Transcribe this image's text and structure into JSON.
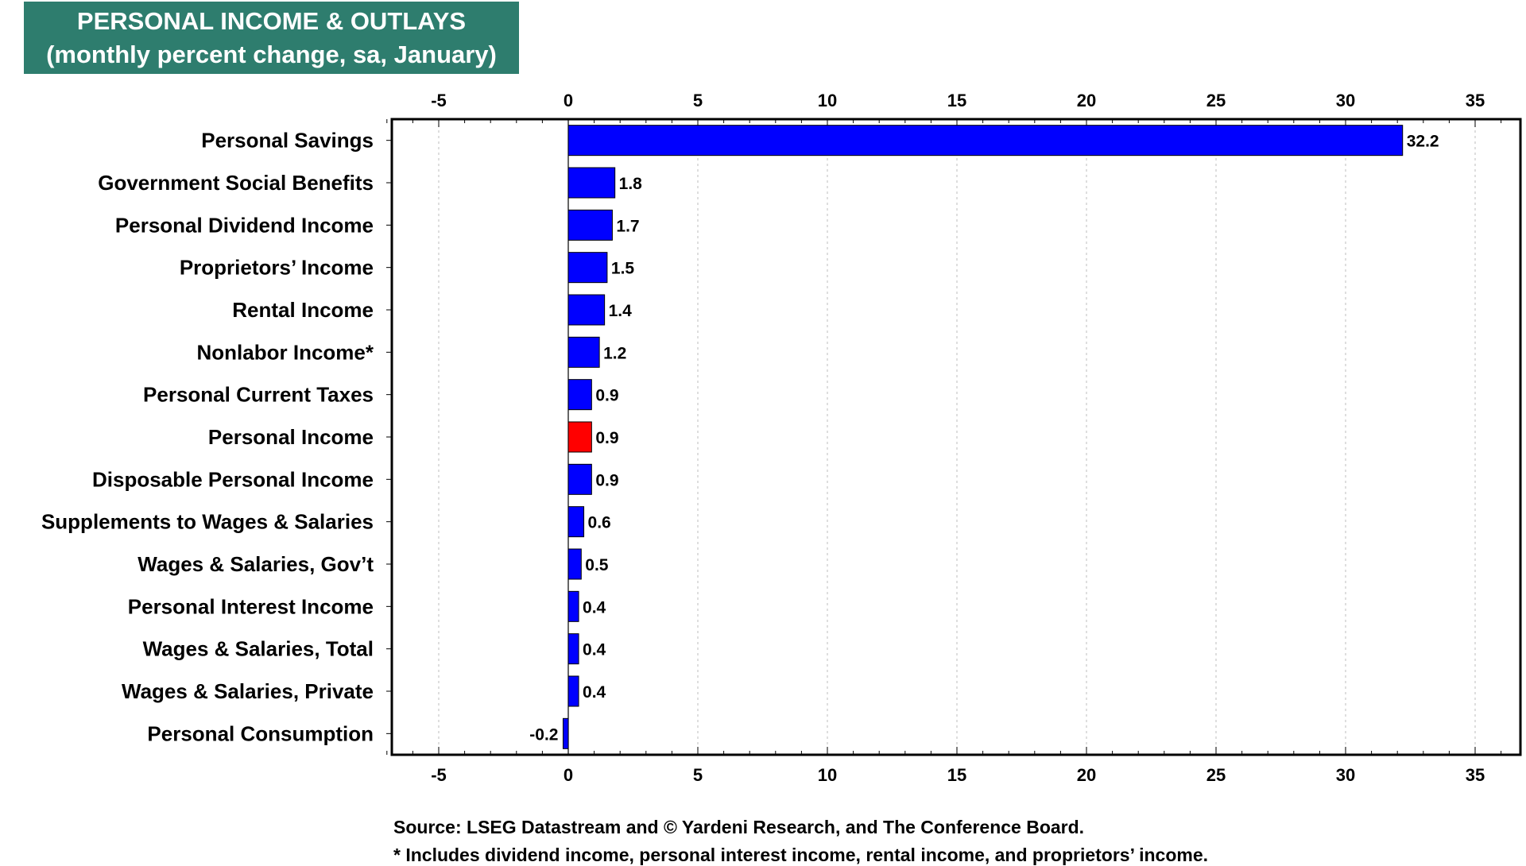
{
  "title": {
    "line1": "PERSONAL INCOME & OUTLAYS",
    "line2": "(monthly percent change, sa, January)",
    "background": "#2E7D6E"
  },
  "chart_data": {
    "type": "bar",
    "orientation": "horizontal",
    "categories": [
      "Personal Savings",
      "Government Social Benefits",
      "Personal Dividend Income",
      "Proprietors’ Income",
      "Rental Income",
      "Nonlabor Income*",
      "Personal Current Taxes",
      "Personal Income",
      "Disposable Personal Income",
      "Supplements to Wages & Salaries",
      "Wages & Salaries, Gov’t",
      "Personal Interest Income",
      "Wages & Salaries, Total",
      "Wages & Salaries, Private",
      "Personal Consumption"
    ],
    "values": [
      32.2,
      1.8,
      1.7,
      1.5,
      1.4,
      1.2,
      0.9,
      0.9,
      0.9,
      0.6,
      0.5,
      0.4,
      0.4,
      0.4,
      -0.2
    ],
    "data_labels": [
      "32.2",
      "1.8",
      "1.7",
      "1.5",
      "1.4",
      "1.2",
      "0.9",
      "0.9",
      "0.9",
      "0.6",
      "0.5",
      "0.4",
      "0.4",
      "0.4",
      "-0.2"
    ],
    "highlight_category": "Personal Income",
    "bar_color": "#0000FF",
    "highlight_color": "#FF0000",
    "xlim": [
      -7,
      37
    ],
    "xticks": [
      -5,
      0,
      5,
      10,
      15,
      20,
      25,
      30,
      35
    ],
    "xtick_labels": [
      "-5",
      "0",
      "5",
      "10",
      "15",
      "20",
      "25",
      "30",
      "35"
    ],
    "grid": "vertical dotted",
    "xaxis_labels_on": "top and bottom"
  },
  "footnotes": {
    "source": "Source: LSEG Datastream and © Yardeni Research, and The Conference Board.",
    "note": "* Includes dividend income, personal interest income, rental income, and proprietors’ income."
  }
}
